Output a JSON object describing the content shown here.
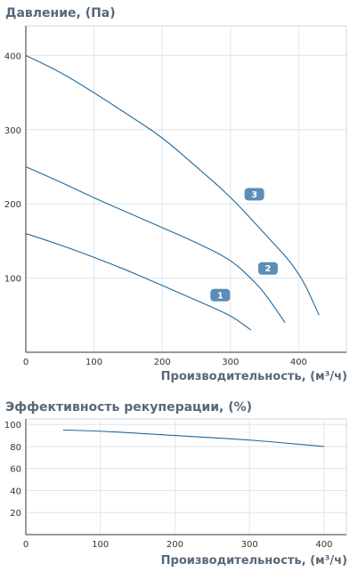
{
  "chart_data": [
    {
      "type": "line",
      "title": "Давление, (Па)",
      "xlabel": "Производительность, (м³/ч)",
      "ylabel": "",
      "xlim": [
        0,
        470
      ],
      "ylim": [
        0,
        440
      ],
      "xticks": [
        0,
        100,
        200,
        300,
        400
      ],
      "yticks": [
        100,
        200,
        300,
        400
      ],
      "grid": true,
      "line_color": "#1e6a9c",
      "badge_color": "#5b8db8",
      "series": [
        {
          "name": "1",
          "x": [
            0,
            50,
            100,
            150,
            200,
            250,
            300,
            330
          ],
          "y": [
            160,
            145,
            128,
            110,
            90,
            70,
            50,
            30
          ],
          "label_at": [
            285,
            77
          ]
        },
        {
          "name": "2",
          "x": [
            0,
            50,
            100,
            150,
            200,
            250,
            300,
            330,
            350,
            380
          ],
          "y": [
            250,
            230,
            208,
            188,
            168,
            148,
            125,
            100,
            80,
            40
          ],
          "label_at": [
            355,
            113
          ]
        },
        {
          "name": "3",
          "x": [
            0,
            50,
            100,
            150,
            200,
            250,
            300,
            350,
            400,
            430
          ],
          "y": [
            400,
            378,
            350,
            320,
            290,
            250,
            210,
            160,
            110,
            50
          ],
          "label_at": [
            335,
            213
          ]
        }
      ]
    },
    {
      "type": "line",
      "title": "Эффективность рекуперации, (%)",
      "xlabel": "Производительность, (м³/ч)",
      "ylabel": "",
      "xlim": [
        0,
        430
      ],
      "ylim": [
        0,
        105
      ],
      "xticks": [
        0,
        100,
        200,
        300,
        400
      ],
      "yticks": [
        20,
        40,
        60,
        80,
        100
      ],
      "grid": true,
      "line_color": "#1e6a9c",
      "series": [
        {
          "x": [
            50,
            100,
            150,
            200,
            250,
            300,
            350,
            400
          ],
          "y": [
            95,
            94,
            92,
            90,
            88,
            86,
            83,
            80
          ]
        }
      ]
    }
  ]
}
